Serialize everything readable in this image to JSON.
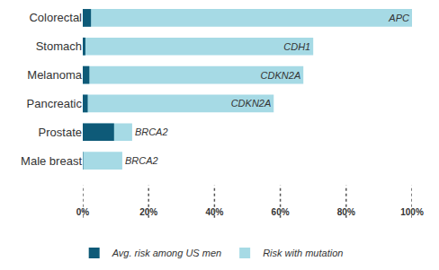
{
  "chart_data": {
    "type": "bar",
    "orientation": "horizontal",
    "categories": [
      "Colorectal",
      "Stomach",
      "Melanoma",
      "Pancreatic",
      "Prostate",
      "Male breast"
    ],
    "series": [
      {
        "name": "Avg. risk among US men",
        "color": "#0e5a78",
        "values": [
          2.5,
          0.8,
          2,
          1.5,
          9.5,
          0.1
        ]
      },
      {
        "name": "Risk with mutation",
        "color": "#a6dae5",
        "values": [
          100,
          70,
          67,
          58,
          15,
          12
        ],
        "mutations": [
          "APC",
          "CDH1",
          "CDKN2A",
          "CDKN2A",
          "BRCA2",
          "BRCA2"
        ]
      }
    ],
    "xlim": [
      0,
      100
    ],
    "xticks": [
      {
        "value": 0,
        "label": "0%"
      },
      {
        "value": 20,
        "label": "20%"
      },
      {
        "value": 40,
        "label": "40%"
      },
      {
        "value": 60,
        "label": "60%"
      },
      {
        "value": 80,
        "label": "80%"
      },
      {
        "value": 100,
        "label": "100%"
      }
    ],
    "grid": false,
    "legend": "bottom",
    "data_labels": false
  }
}
